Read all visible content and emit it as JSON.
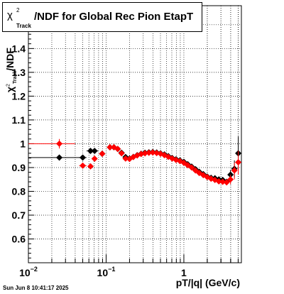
{
  "title": {
    "chi": "χ",
    "sup": "2",
    "sub": "Track",
    "rest": "/NDF for Global Rec Pion EtapT"
  },
  "ylabel": {
    "chi": "χ",
    "sup": "2",
    "sub": "Track",
    "rest": "/NDF"
  },
  "footer": "Sun Jun  8 10:41:17 2025",
  "chart_data": {
    "type": "scatter",
    "title": "χ2 Track /NDF for Global Rec Pion EtapT",
    "xlabel": "pT/|q| (GeV/c)",
    "ylabel": "χ2 Track /NDF",
    "x_scale": "log",
    "xlim": [
      0.01,
      5.5
    ],
    "ylim": [
      0.5,
      1.58
    ],
    "x_ticks": [
      {
        "value": 0.01,
        "label": "10",
        "sup": "−2"
      },
      {
        "value": 0.1,
        "label": "10",
        "sup": "−1"
      },
      {
        "value": 1,
        "label": "1",
        "sup": ""
      }
    ],
    "y_ticks": [
      0.6,
      0.7,
      0.8,
      0.9,
      1,
      1.1,
      1.2,
      1.3,
      1.4,
      1.5
    ],
    "y_tick_labels": [
      "0.6",
      "0.7",
      "0.8",
      "0.9",
      "1",
      "1.1",
      "1.2",
      "1.3",
      "1.4",
      "1.5"
    ],
    "grid": true,
    "series": [
      {
        "color": "#000000",
        "points": [
          {
            "x": 0.025,
            "y": 0.942,
            "xlo": 0.01,
            "xhi": 0.05
          },
          {
            "x": 0.05,
            "y": 0.942,
            "xlo": 0.045,
            "xhi": 0.056
          },
          {
            "x": 0.063,
            "y": 0.97,
            "xlo": 0.056,
            "xhi": 0.071
          },
          {
            "x": 0.071,
            "y": 0.97,
            "xlo": 0.063,
            "xhi": 0.079
          },
          {
            "x": 0.089,
            "y": 0.958
          },
          {
            "x": 0.112,
            "y": 0.985
          },
          {
            "x": 0.126,
            "y": 0.985
          },
          {
            "x": 0.141,
            "y": 0.978
          },
          {
            "x": 0.158,
            "y": 0.962
          },
          {
            "x": 0.178,
            "y": 0.944
          },
          {
            "x": 0.2,
            "y": 0.938
          },
          {
            "x": 0.224,
            "y": 0.945
          },
          {
            "x": 0.251,
            "y": 0.952
          },
          {
            "x": 0.282,
            "y": 0.958
          },
          {
            "x": 0.316,
            "y": 0.962
          },
          {
            "x": 0.355,
            "y": 0.964
          },
          {
            "x": 0.398,
            "y": 0.965
          },
          {
            "x": 0.447,
            "y": 0.963
          },
          {
            "x": 0.501,
            "y": 0.96
          },
          {
            "x": 0.562,
            "y": 0.955
          },
          {
            "x": 0.631,
            "y": 0.948
          },
          {
            "x": 0.708,
            "y": 0.94
          },
          {
            "x": 0.794,
            "y": 0.935
          },
          {
            "x": 0.891,
            "y": 0.93
          },
          {
            "x": 1.0,
            "y": 0.924
          },
          {
            "x": 1.12,
            "y": 0.914
          },
          {
            "x": 1.26,
            "y": 0.904
          },
          {
            "x": 1.41,
            "y": 0.893
          },
          {
            "x": 1.58,
            "y": 0.882
          },
          {
            "x": 1.78,
            "y": 0.872
          },
          {
            "x": 2.0,
            "y": 0.862
          },
          {
            "x": 2.24,
            "y": 0.857
          },
          {
            "x": 2.51,
            "y": 0.855
          },
          {
            "x": 2.82,
            "y": 0.85
          },
          {
            "x": 3.16,
            "y": 0.848
          },
          {
            "x": 3.55,
            "y": 0.84
          },
          {
            "x": 3.98,
            "y": 0.87,
            "ylo": 0.85,
            "yhi": 0.89
          },
          {
            "x": 4.47,
            "y": 0.895,
            "ylo": 0.86,
            "yhi": 0.93
          },
          {
            "x": 5.01,
            "y": 0.96,
            "ylo": 0.89,
            "yhi": 1.03
          }
        ]
      },
      {
        "color": "#ff0000",
        "points": [
          {
            "x": 0.025,
            "y": 1.0,
            "xlo": 0.01,
            "xhi": 0.04,
            "ylo": 0.98,
            "yhi": 1.02
          },
          {
            "x": 0.05,
            "y": 0.908,
            "xlo": 0.045,
            "xhi": 0.056
          },
          {
            "x": 0.063,
            "y": 0.905
          },
          {
            "x": 0.071,
            "y": 0.937
          },
          {
            "x": 0.089,
            "y": 0.958
          },
          {
            "x": 0.112,
            "y": 0.985
          },
          {
            "x": 0.126,
            "y": 0.985
          },
          {
            "x": 0.141,
            "y": 0.978
          },
          {
            "x": 0.158,
            "y": 0.96
          },
          {
            "x": 0.178,
            "y": 0.938
          },
          {
            "x": 0.2,
            "y": 0.936
          },
          {
            "x": 0.224,
            "y": 0.944
          },
          {
            "x": 0.251,
            "y": 0.951
          },
          {
            "x": 0.282,
            "y": 0.957
          },
          {
            "x": 0.316,
            "y": 0.96
          },
          {
            "x": 0.355,
            "y": 0.962
          },
          {
            "x": 0.398,
            "y": 0.963
          },
          {
            "x": 0.447,
            "y": 0.961
          },
          {
            "x": 0.501,
            "y": 0.958
          },
          {
            "x": 0.562,
            "y": 0.952
          },
          {
            "x": 0.631,
            "y": 0.945
          },
          {
            "x": 0.708,
            "y": 0.938
          },
          {
            "x": 0.794,
            "y": 0.932
          },
          {
            "x": 0.891,
            "y": 0.927
          },
          {
            "x": 1.0,
            "y": 0.92
          },
          {
            "x": 1.12,
            "y": 0.91
          },
          {
            "x": 1.26,
            "y": 0.9
          },
          {
            "x": 1.41,
            "y": 0.888
          },
          {
            "x": 1.58,
            "y": 0.877
          },
          {
            "x": 1.78,
            "y": 0.868
          },
          {
            "x": 2.0,
            "y": 0.86
          },
          {
            "x": 2.24,
            "y": 0.853
          },
          {
            "x": 2.51,
            "y": 0.848
          },
          {
            "x": 2.82,
            "y": 0.842
          },
          {
            "x": 3.16,
            "y": 0.84
          },
          {
            "x": 3.55,
            "y": 0.838
          },
          {
            "x": 3.98,
            "y": 0.85,
            "ylo": 0.83,
            "yhi": 0.87
          },
          {
            "x": 4.47,
            "y": 0.888,
            "ylo": 0.85,
            "yhi": 0.92
          },
          {
            "x": 5.01,
            "y": 0.922,
            "ylo": 0.87,
            "yhi": 0.97
          }
        ]
      }
    ]
  }
}
